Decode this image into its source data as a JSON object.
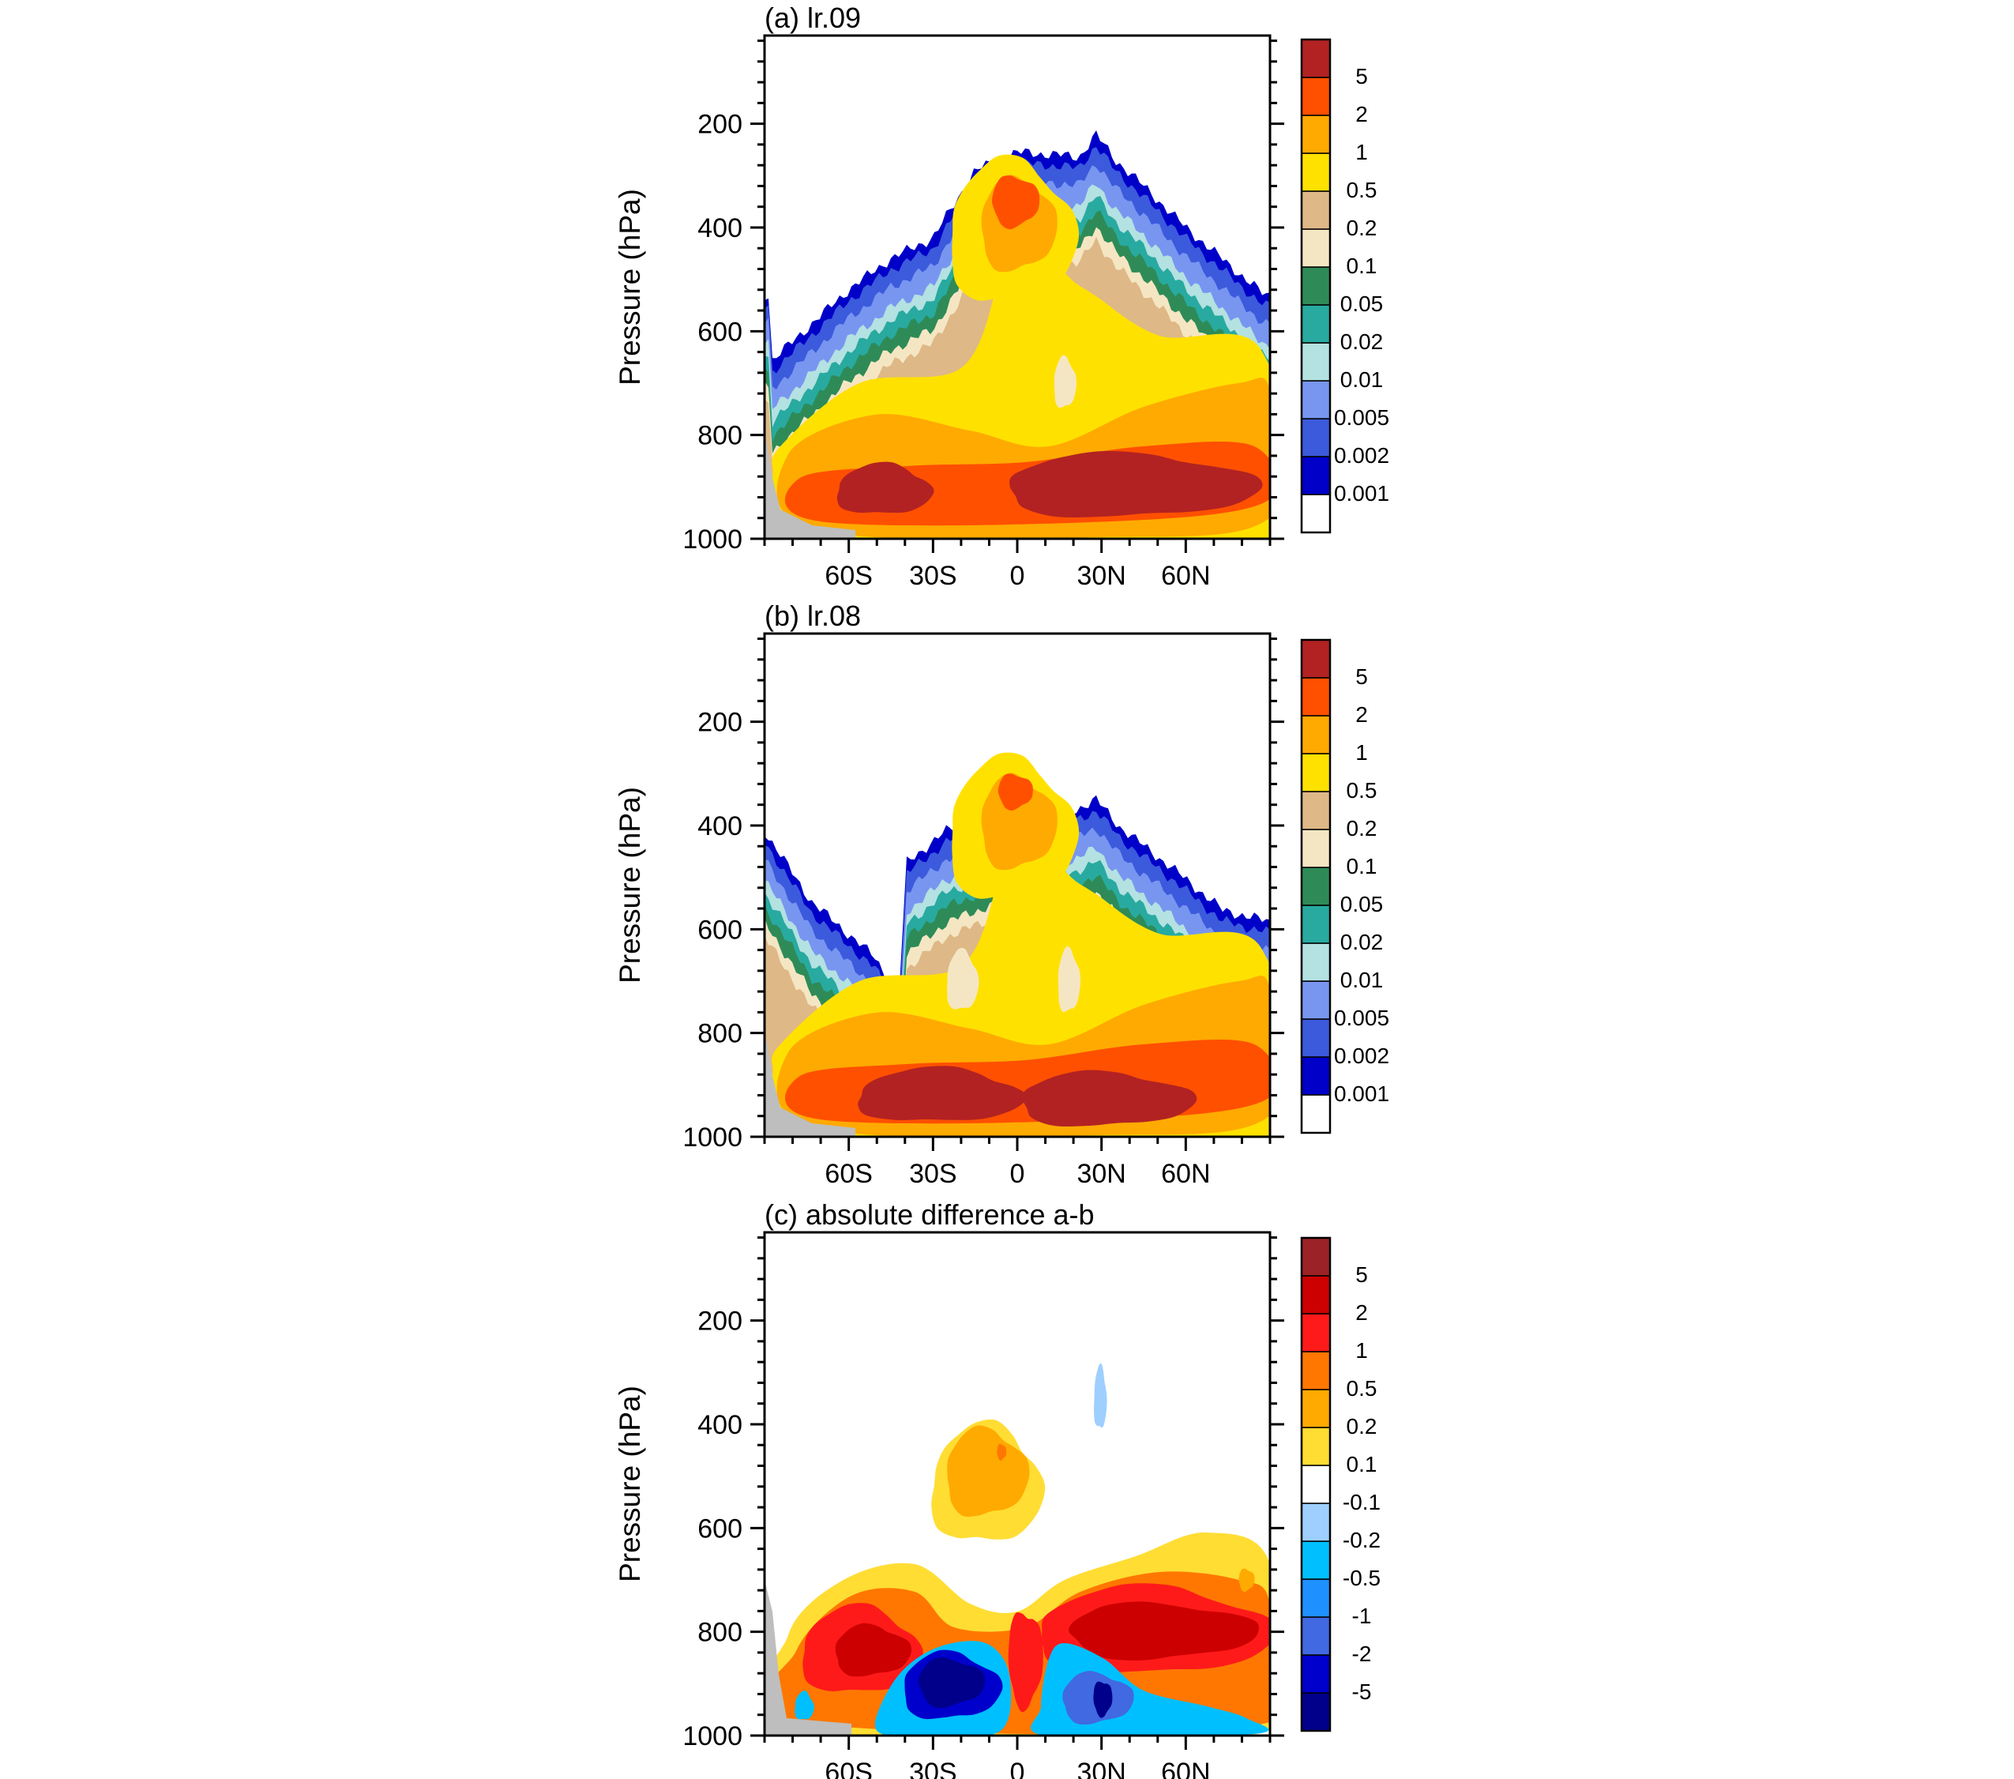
{
  "figure": {
    "y_axis_label": "Pressure (hPa)"
  },
  "chart_data": [
    {
      "type": "heatmap",
      "title": "(a) lr.09",
      "ylabel": "Pressure (hPa)",
      "xlabel": "",
      "y_ticks": [
        200,
        400,
        600,
        800,
        1000
      ],
      "y_tick_labels": [
        "200",
        "400",
        "600",
        "800",
        "1000"
      ],
      "ylim": [
        1000,
        30
      ],
      "y_reversed": true,
      "x_ticks": [
        -60,
        -30,
        0,
        30,
        60
      ],
      "x_tick_labels": [
        "60S",
        "30S",
        "0",
        "30N",
        "60N"
      ],
      "xlim": [
        -90,
        90
      ],
      "colorbar": {
        "levels": [
          "0.001",
          "0.002",
          "0.005",
          "0.01",
          "0.02",
          "0.05",
          "0.1",
          "0.2",
          "0.5",
          "1",
          "2",
          "5"
        ],
        "colors": [
          "#ffffff",
          "#0000c8",
          "#3c5adc",
          "#7896f0",
          "#b4e1e1",
          "#28aaa0",
          "#2e8b57",
          "#f5e6c3",
          "#deb887",
          "#ffe100",
          "#ffaa00",
          "#ff5000",
          "#b22222"
        ]
      },
      "features": {
        "cloud_top_hPa_at_lat": [
          [
            -88,
            660
          ],
          [
            -60,
            520
          ],
          [
            -45,
            460
          ],
          [
            -30,
            420
          ],
          [
            -15,
            290
          ],
          [
            0,
            255
          ],
          [
            15,
            260
          ],
          [
            22,
            265
          ],
          [
            28,
            220
          ],
          [
            35,
            270
          ],
          [
            45,
            320
          ],
          [
            60,
            400
          ],
          [
            75,
            470
          ],
          [
            88,
            530
          ]
        ],
        "max_center_lat": [
          [
            -55,
            930
          ],
          [
            25,
            910
          ]
        ],
        "terrain_color": "#bebebe"
      }
    },
    {
      "type": "heatmap",
      "title": "(b) lr.08",
      "ylabel": "Pressure (hPa)",
      "xlabel": "",
      "y_ticks": [
        200,
        400,
        600,
        800,
        1000
      ],
      "y_tick_labels": [
        "200",
        "400",
        "600",
        "800",
        "1000"
      ],
      "ylim": [
        1000,
        30
      ],
      "y_reversed": true,
      "x_ticks": [
        -60,
        -30,
        0,
        30,
        60
      ],
      "x_tick_labels": [
        "60S",
        "30S",
        "0",
        "30N",
        "60N"
      ],
      "xlim": [
        -90,
        90
      ],
      "colorbar": {
        "levels": [
          "0.001",
          "0.002",
          "0.005",
          "0.01",
          "0.02",
          "0.05",
          "0.1",
          "0.2",
          "0.5",
          "1",
          "2",
          "5"
        ],
        "colors": [
          "#ffffff",
          "#0000c8",
          "#3c5adc",
          "#7896f0",
          "#b4e1e1",
          "#28aaa0",
          "#2e8b57",
          "#f5e6c3",
          "#deb887",
          "#ffe100",
          "#ffaa00",
          "#ff5000",
          "#b22222"
        ]
      },
      "features": {
        "max_center_lat": [
          [
            -30,
            890
          ],
          [
            30,
            890
          ]
        ],
        "terrain_color": "#bebebe"
      }
    },
    {
      "type": "heatmap",
      "title": "(c) absolute difference a-b",
      "ylabel": "Pressure (hPa)",
      "xlabel": "",
      "y_ticks": [
        200,
        400,
        600,
        800,
        1000
      ],
      "y_tick_labels": [
        "200",
        "400",
        "600",
        "800",
        "1000"
      ],
      "ylim": [
        1000,
        30
      ],
      "y_reversed": true,
      "x_ticks": [
        -60,
        -30,
        0,
        30,
        60
      ],
      "x_tick_labels": [
        "60S",
        "30S",
        "0",
        "30N",
        "60N"
      ],
      "xlim": [
        -90,
        90
      ],
      "colorbar": {
        "levels": [
          "-5",
          "-2",
          "-1",
          "-0.5",
          "-0.2",
          "-0.1",
          "0.1",
          "0.2",
          "0.5",
          "1",
          "2",
          "5"
        ],
        "colors": [
          "#00008b",
          "#0000cd",
          "#4169e1",
          "#1e90ff",
          "#00bfff",
          "#9ecfff",
          "#ffffff",
          "#ffdd33",
          "#ffaa00",
          "#ff7700",
          "#ff1a1a",
          "#cc0000",
          "#9b2226"
        ]
      },
      "features": {
        "terrain_color": "#bebebe"
      }
    }
  ]
}
